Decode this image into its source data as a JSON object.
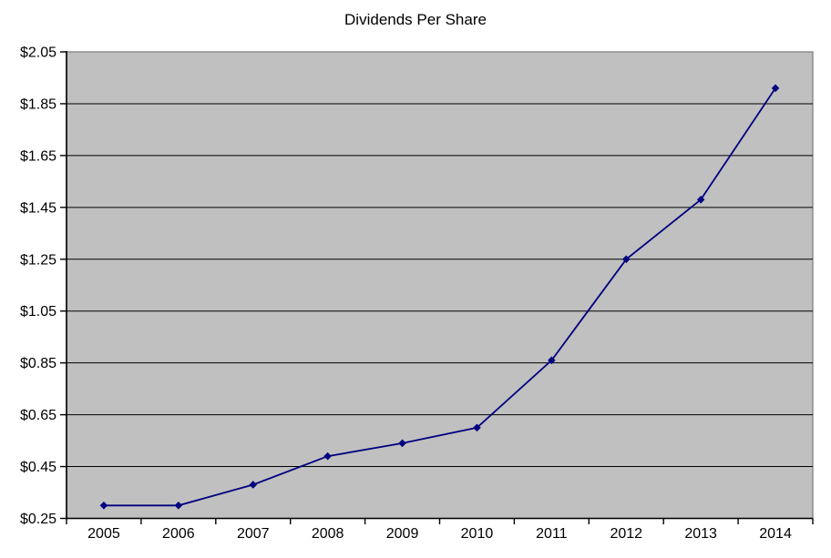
{
  "chart_data": {
    "type": "line",
    "title": "Dividends Per Share",
    "categories": [
      "2005",
      "2006",
      "2007",
      "2008",
      "2009",
      "2010",
      "2011",
      "2012",
      "2013",
      "2014"
    ],
    "series": [
      {
        "name": "Dividends Per Share",
        "values": [
          0.3,
          0.3,
          0.38,
          0.49,
          0.54,
          0.6,
          0.86,
          1.25,
          1.48,
          1.91
        ]
      }
    ],
    "xlabel": "",
    "ylabel": "",
    "ylim": [
      0.25,
      2.05
    ],
    "ytick_step": 0.2,
    "ytick_labels": [
      "$0.25",
      "$0.45",
      "$0.65",
      "$0.85",
      "$1.05",
      "$1.25",
      "$1.45",
      "$1.65",
      "$1.85",
      "$2.05"
    ],
    "grid": true,
    "legend_position": "none",
    "marker": "diamond",
    "colors": {
      "series_line": "#000080",
      "marker_fill": "#000080",
      "plot_bg": "#c0c0c0",
      "plot_border": "#808080",
      "gridline": "#000000",
      "axis": "#000000",
      "text": "#000000",
      "background": "#ffffff"
    }
  }
}
